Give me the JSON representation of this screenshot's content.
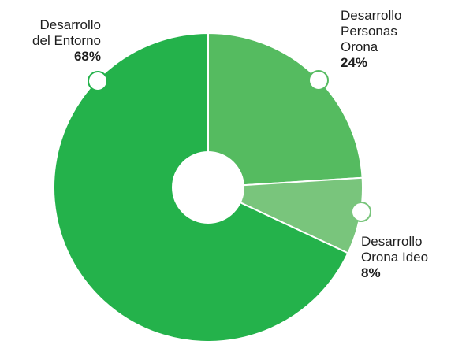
{
  "chart_data": {
    "type": "pie",
    "style": "donut",
    "slices": [
      {
        "label_lines": [
          "Desarrollo",
          "Personas",
          "Orona"
        ],
        "value": 24,
        "value_label": "24%",
        "color": "#55bb60"
      },
      {
        "label_lines": [
          "Desarrollo",
          "Orona Ideo"
        ],
        "value": 8,
        "value_label": "8%",
        "color": "#79c57c"
      },
      {
        "label_lines": [
          "Desarrollo",
          "del Entorno"
        ],
        "value": 68,
        "value_label": "68%",
        "color": "#24b24b"
      }
    ],
    "start_angle_deg": 0,
    "direction": "clockwise",
    "legend": "none",
    "colors": {
      "separator": "#ffffff",
      "center_hole": "#ffffff",
      "marker_fill": "#ffffff",
      "text": "#1e1e1e"
    }
  }
}
